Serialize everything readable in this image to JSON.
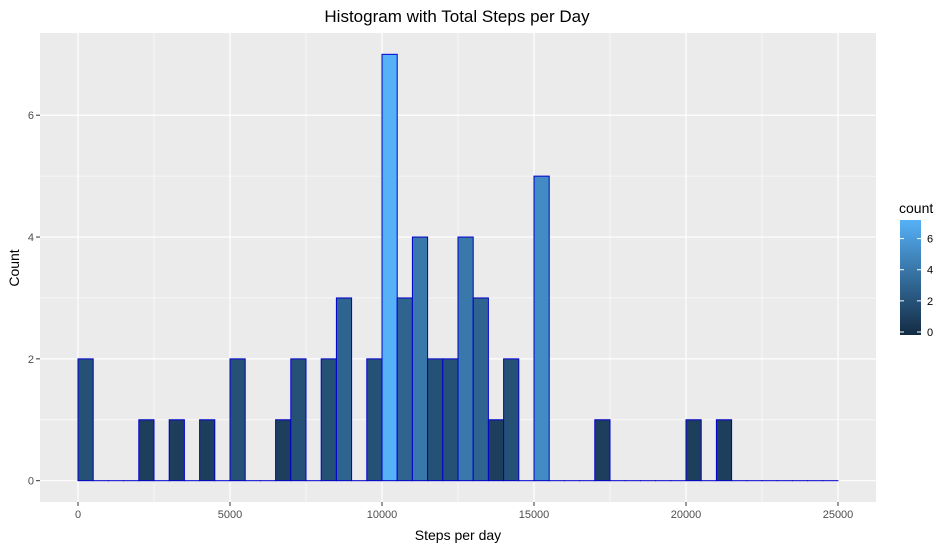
{
  "chart_data": {
    "type": "bar",
    "title": "Histogram with Total Steps per Day",
    "xlabel": "Steps per day",
    "ylabel": "Count",
    "xlim": [
      -1250,
      26250
    ],
    "ylim": [
      -0.35,
      7.35
    ],
    "xticks": [
      0,
      5000,
      10000,
      15000,
      20000,
      25000
    ],
    "yticks": [
      0,
      2,
      4,
      6
    ],
    "bin_width": 500,
    "bin_starts": [
      0,
      500,
      1000,
      1500,
      2000,
      2500,
      3000,
      3500,
      4000,
      4500,
      5000,
      5500,
      6000,
      6500,
      7000,
      7500,
      8000,
      8500,
      9000,
      9500,
      10000,
      10500,
      11000,
      11500,
      12000,
      12500,
      13000,
      13500,
      14000,
      14500,
      15000,
      15500,
      16000,
      16500,
      17000,
      17500,
      18000,
      18500,
      19000,
      19500,
      20000,
      20500,
      21000,
      21500,
      22000,
      22500,
      23000,
      23500,
      24000,
      24500
    ],
    "counts": [
      2,
      0,
      0,
      0,
      1,
      0,
      1,
      0,
      1,
      0,
      2,
      0,
      0,
      1,
      2,
      0,
      2,
      3,
      0,
      2,
      7,
      3,
      4,
      2,
      2,
      4,
      3,
      1,
      2,
      0,
      5,
      0,
      0,
      0,
      1,
      0,
      0,
      0,
      0,
      0,
      1,
      0,
      1,
      0,
      0,
      0,
      0,
      0,
      0,
      0
    ],
    "grid": true,
    "legend": {
      "title": "count",
      "position": "right",
      "ticks": [
        0,
        2,
        4,
        6
      ],
      "color_low": "#132B43",
      "color_high": "#56B1F7"
    },
    "bar_outline_color": "#0000cd",
    "panel_background": "#ebebeb"
  }
}
